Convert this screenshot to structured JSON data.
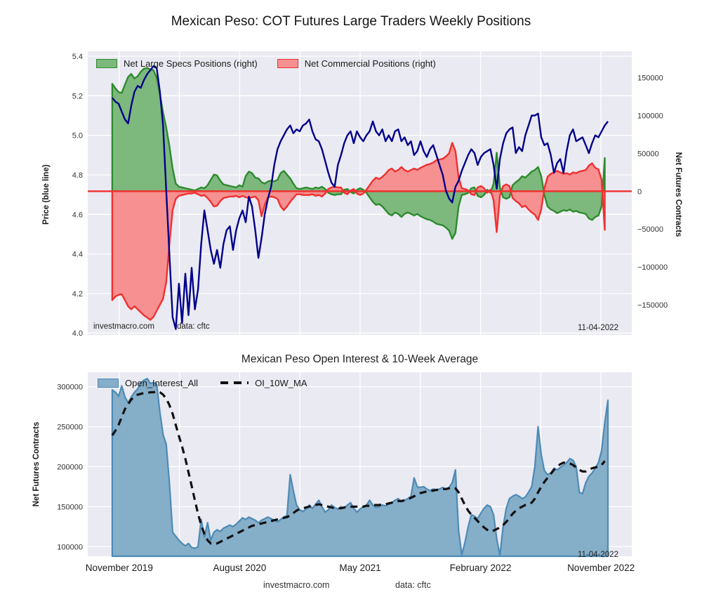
{
  "colors": {
    "figure_bg": "#ffffff",
    "axes_bg": "#eaeaf2",
    "grid": "#ffffff",
    "price_line": "#00008b",
    "specs_fill": "#7db87d",
    "specs_edge": "#2e8b2e",
    "commercial_fill": "#f79090",
    "commercial_edge": "#f03030",
    "zero_line": "#f03030",
    "oi_fill": "#85aec9",
    "oi_edge": "#4d8ab5",
    "ma_line": "#111111"
  },
  "chart_data": [
    {
      "type": "line+area",
      "title": "Mexican Peso: COT Futures Large Traders Weekly Positions",
      "ylabel_left": "Price (blue line)",
      "ylabel_right": "Net Futures Contracts",
      "ylim_left": [
        3.99,
        5.425
      ],
      "ylim_right": [
        -190000,
        185000
      ],
      "xlim": [
        -7.7,
        163.5
      ],
      "xgrid": [
        2.2,
        21.15,
        40.1,
        59.05,
        78.0,
        96.95,
        115.9,
        134.85,
        153.8
      ],
      "yticks_left": {
        "values": [
          5.4,
          5.2,
          5.0,
          4.8,
          4.6,
          4.4,
          4.2,
          4.0
        ],
        "labels": [
          "5.4",
          "5.2",
          "5.0",
          "4.8",
          "4.6",
          "4.4",
          "4.2",
          "4.0"
        ]
      },
      "yticks_right": {
        "values": [
          150000,
          100000,
          50000,
          0,
          -50000,
          -100000,
          -150000
        ],
        "labels": [
          "150000",
          "100000",
          "50000",
          "0",
          "−50000",
          "−100000",
          "−150000"
        ]
      },
      "legend": [
        "Net Large Specs Positions (right)",
        "Net Commercial Positions (right)"
      ],
      "annotations": [
        "investmacro.com",
        "data: cftc",
        "11-04-2022"
      ],
      "zero_line": {
        "axis": "right",
        "value": 0,
        "color": "#f03030"
      },
      "series": [
        {
          "id": "net-large-specs-area",
          "name": "Net Large Specs Positions",
          "axis": "right",
          "style": "area",
          "baseline": 0,
          "fill": "#7db87d",
          "edge": "#2e8b2e",
          "edge_width": 2.4,
          "start_week": 0,
          "step": 1,
          "values": [
            142000,
            136000,
            131000,
            130000,
            141000,
            151000,
            155000,
            149000,
            152000,
            158000,
            162000,
            163000,
            161000,
            160000,
            150000,
            128000,
            104000,
            84000,
            60000,
            30000,
            10000,
            6000,
            5000,
            4000,
            3000,
            2000,
            1000,
            3000,
            5000,
            4000,
            8000,
            15000,
            22000,
            21000,
            14000,
            9000,
            8000,
            7000,
            6000,
            5000,
            8000,
            6000,
            20000,
            26000,
            24000,
            18000,
            17000,
            12000,
            10000,
            13000,
            14000,
            13000,
            15000,
            24000,
            27000,
            22000,
            17000,
            10000,
            4000,
            3000,
            4000,
            5000,
            4000,
            3000,
            5000,
            4000,
            6000,
            3000,
            -2000,
            -4000,
            -5000,
            -4000,
            -4000,
            2000,
            3000,
            -1000,
            -3000,
            2000,
            4000,
            2000,
            -2000,
            -8000,
            -14000,
            -18000,
            -17000,
            -20000,
            -25000,
            -30000,
            -32000,
            -28000,
            -30000,
            -34000,
            -30000,
            -28000,
            -30000,
            -32000,
            -30000,
            -33000,
            -35000,
            -37000,
            -38000,
            -40000,
            -43000,
            -44000,
            -45000,
            -48000,
            -52000,
            -63000,
            -55000,
            -20000,
            -5000,
            -4000,
            -2000,
            4000,
            5000,
            -6000,
            -8000,
            -5000,
            2000,
            -2000,
            10000,
            51000,
            5000,
            -8000,
            -10000,
            -8000,
            8000,
            12000,
            15000,
            20000,
            18000,
            22000,
            26000,
            28000,
            32000,
            20000,
            -5000,
            -20000,
            -24000,
            -26000,
            -29000,
            -27000,
            -25000,
            -26000,
            -24000,
            -27000,
            -26000,
            -28000,
            -29000,
            -30000,
            -36000,
            -38000,
            -34000,
            -32000,
            -20000,
            44000
          ]
        },
        {
          "id": "net-commercial-area",
          "name": "Net Commercial Positions",
          "axis": "right",
          "style": "area",
          "baseline": 0,
          "fill": "#f79090",
          "edge": "#f03030",
          "edge_width": 2.4,
          "start_week": 0,
          "step": 1,
          "values": [
            -144000,
            -139000,
            -137000,
            -136000,
            -144000,
            -152000,
            -156000,
            -152000,
            -156000,
            -160000,
            -164000,
            -167000,
            -170000,
            -166000,
            -158000,
            -150000,
            -142000,
            -120000,
            -70000,
            -25000,
            -10000,
            -6000,
            -5000,
            -4000,
            -3000,
            -3000,
            -2000,
            -4000,
            -6000,
            -5000,
            -9000,
            -14000,
            -20000,
            -19000,
            -13000,
            -9000,
            -8000,
            -7000,
            -7000,
            -6000,
            -8000,
            -6000,
            -8000,
            -9000,
            -8000,
            -7000,
            -12000,
            -33000,
            -18000,
            -8000,
            -7000,
            -8000,
            -10000,
            -20000,
            -25000,
            -20000,
            -14000,
            -9000,
            -4000,
            -4000,
            -5000,
            -5000,
            -5000,
            -4000,
            -6000,
            -5000,
            -7000,
            -3000,
            3000,
            5000,
            6000,
            5000,
            5000,
            -2000,
            -4000,
            1000,
            3000,
            -3000,
            -5000,
            -3000,
            2000,
            8000,
            14000,
            18000,
            16000,
            19000,
            23000,
            28000,
            30000,
            26000,
            28000,
            32000,
            28000,
            26000,
            28000,
            30000,
            28000,
            31000,
            33000,
            35000,
            36000,
            38000,
            41000,
            42000,
            43000,
            46000,
            50000,
            64000,
            53000,
            18000,
            4000,
            3000,
            1000,
            -4000,
            -5000,
            5000,
            7000,
            4000,
            -2000,
            2000,
            -12000,
            -54000,
            -6000,
            7000,
            9000,
            7000,
            -9000,
            -13000,
            -16000,
            -21000,
            -19000,
            -24000,
            -28000,
            -31000,
            -38000,
            -24000,
            4000,
            19000,
            23000,
            25000,
            27000,
            25000,
            23000,
            24000,
            22000,
            25000,
            24000,
            26000,
            27000,
            28000,
            34000,
            37000,
            31000,
            29000,
            15000,
            -51000
          ]
        },
        {
          "id": "price-line",
          "name": "Price",
          "axis": "left",
          "style": "line",
          "color": "#00008b",
          "width": 2.4,
          "start_week": 0,
          "step": 1,
          "values": [
            5.19,
            5.17,
            5.16,
            5.12,
            5.08,
            5.06,
            5.15,
            5.22,
            5.25,
            5.24,
            5.28,
            5.31,
            5.33,
            5.35,
            5.34,
            5.22,
            5.05,
            4.72,
            4.4,
            4.08,
            4.02,
            4.25,
            4.05,
            4.3,
            4.09,
            4.33,
            4.12,
            4.22,
            4.45,
            4.62,
            4.52,
            4.42,
            4.35,
            4.42,
            4.33,
            4.45,
            4.52,
            4.54,
            4.42,
            4.52,
            4.58,
            4.62,
            4.56,
            4.69,
            4.64,
            4.52,
            4.38,
            4.48,
            4.6,
            4.68,
            4.74,
            4.85,
            4.93,
            4.97,
            5.0,
            5.03,
            5.05,
            5.01,
            5.03,
            5.02,
            5.05,
            5.06,
            5.08,
            5.02,
            4.98,
            4.97,
            4.93,
            4.87,
            4.81,
            4.76,
            4.74,
            4.85,
            4.9,
            4.96,
            5.0,
            5.02,
            4.96,
            5.02,
            4.99,
            4.97,
            5.0,
            5.02,
            5.07,
            5.02,
            5.0,
            5.03,
            4.97,
            5.0,
            4.97,
            5.02,
            5.03,
            4.97,
            4.99,
            4.95,
            4.97,
            4.9,
            4.92,
            4.97,
            4.92,
            4.89,
            4.93,
            4.95,
            4.9,
            4.85,
            4.8,
            4.72,
            4.68,
            4.66,
            4.74,
            4.77,
            4.82,
            4.86,
            4.9,
            4.93,
            4.91,
            4.85,
            4.89,
            4.91,
            4.92,
            4.93,
            4.85,
            4.73,
            4.88,
            4.96,
            5.01,
            5.03,
            5.04,
            4.91,
            4.94,
            4.92,
            5.0,
            5.05,
            5.1,
            5.1,
            5.11,
            4.99,
            4.95,
            4.96,
            4.9,
            4.81,
            4.86,
            4.88,
            4.81,
            4.92,
            5.0,
            5.03,
            4.97,
            4.98,
            4.99,
            4.95,
            4.91,
            4.96,
            5.0,
            4.99,
            5.02,
            5.05,
            5.07
          ]
        }
      ]
    },
    {
      "type": "area+line",
      "title": "Mexican Peso Open Interest & 10-Week Average",
      "ylabel_left": "Net Futures Contracts",
      "ylim_left": [
        88000,
        318000
      ],
      "xlim": [
        -7.7,
        163.5
      ],
      "xgrid": [
        2.2,
        21.15,
        40.1,
        59.05,
        78.0,
        96.95,
        115.9,
        134.85,
        153.8
      ],
      "yticks_left": {
        "values": [
          300000,
          250000,
          200000,
          150000,
          100000
        ],
        "labels": [
          "300000",
          "250000",
          "200000",
          "150000",
          "100000"
        ]
      },
      "xticks": {
        "values": [
          2.2,
          40.1,
          78.0,
          115.9,
          153.8
        ],
        "labels": [
          "November 2019",
          "August 2020",
          "May 2021",
          "February 2022",
          "November 2022"
        ]
      },
      "legend": [
        "Open_Interest_All",
        "OI_10W_MA"
      ],
      "annotations": [
        "11-04-2022",
        "investmacro.com",
        "data: cftc"
      ],
      "series": [
        {
          "id": "open-interest-area",
          "name": "Open_Interest_All",
          "axis": "left",
          "style": "area",
          "baseline": 88000,
          "fill": "#85aec9",
          "edge": "#4d8ab5",
          "edge_width": 2.2,
          "start_week": 0,
          "step": 1,
          "values": [
            296000,
            293000,
            288000,
            301000,
            287000,
            280000,
            287000,
            293000,
            297000,
            305000,
            308000,
            310000,
            304000,
            305000,
            303000,
            268000,
            240000,
            228000,
            180000,
            118000,
            113000,
            108000,
            104000,
            101000,
            104000,
            99000,
            98000,
            100000,
            134000,
            112000,
            130000,
            108000,
            118000,
            121000,
            119000,
            123000,
            125000,
            127000,
            125000,
            128000,
            132000,
            136000,
            134000,
            137000,
            135000,
            133000,
            130000,
            133000,
            135000,
            137000,
            135000,
            133000,
            131000,
            134000,
            137000,
            139000,
            190000,
            170000,
            152000,
            146000,
            144000,
            147000,
            152000,
            148000,
            153000,
            158000,
            150000,
            143000,
            146000,
            152000,
            149000,
            147000,
            150000,
            148000,
            152000,
            155000,
            148000,
            143000,
            147000,
            150000,
            152000,
            158000,
            152000,
            149000,
            150000,
            152000,
            151000,
            153000,
            155000,
            158000,
            160000,
            156000,
            158000,
            160000,
            163000,
            186000,
            175000,
            174000,
            175000,
            172000,
            170000,
            172000,
            171000,
            172000,
            174000,
            172000,
            174000,
            180000,
            196000,
            120000,
            90000,
            105000,
            125000,
            140000,
            138000,
            135000,
            142000,
            148000,
            152000,
            150000,
            140000,
            110000,
            89000,
            125000,
            148000,
            160000,
            163000,
            165000,
            163000,
            160000,
            162000,
            168000,
            175000,
            200000,
            250000,
            215000,
            195000,
            190000,
            192000,
            198000,
            196000,
            199000,
            202000,
            205000,
            210000,
            208000,
            200000,
            168000,
            166000,
            180000,
            188000,
            192000,
            198000,
            205000,
            220000,
            255000,
            283000
          ]
        },
        {
          "id": "oi-10w-ma-line",
          "name": "OI_10W_MA",
          "axis": "left",
          "style": "line",
          "color": "#111111",
          "width": 3.2,
          "dash": "10 7",
          "start_week": 0,
          "step": 1,
          "values": [
            239000,
            245000,
            252000,
            262000,
            272000,
            278000,
            284000,
            287000,
            290000,
            291000,
            292000,
            292000,
            293000,
            293000,
            294000,
            293000,
            290000,
            285000,
            277000,
            266000,
            252000,
            238000,
            225000,
            210000,
            193000,
            176000,
            158000,
            141000,
            127000,
            116000,
            108000,
            104000,
            103000,
            104000,
            106000,
            108000,
            110000,
            112000,
            114000,
            116000,
            118000,
            120000,
            122000,
            124000,
            126000,
            127000,
            128000,
            129000,
            130000,
            131000,
            132000,
            133000,
            134000,
            135000,
            136000,
            137000,
            139000,
            142000,
            145000,
            147000,
            148000,
            149000,
            150000,
            151000,
            152000,
            153000,
            152000,
            151000,
            150000,
            149000,
            148000,
            148000,
            148000,
            149000,
            150000,
            150000,
            150000,
            150000,
            150000,
            150000,
            151000,
            151000,
            152000,
            152000,
            152000,
            153000,
            153000,
            154000,
            155000,
            156000,
            157000,
            157000,
            158000,
            159000,
            161000,
            163000,
            165000,
            167000,
            168000,
            169000,
            170000,
            170000,
            171000,
            171000,
            172000,
            172000,
            173000,
            174000,
            173000,
            168000,
            160000,
            152000,
            145000,
            140000,
            136000,
            132000,
            128000,
            124000,
            121000,
            119000,
            120000,
            122000,
            124000,
            127000,
            131000,
            136000,
            141000,
            145000,
            148000,
            150000,
            152000,
            153000,
            155000,
            160000,
            168000,
            175000,
            181000,
            186000,
            191000,
            196000,
            200000,
            203000,
            205000,
            205000,
            204000,
            202000,
            199000,
            196000,
            194000,
            194000,
            196000,
            198000,
            199000,
            200000,
            202000,
            207000
          ]
        }
      ]
    }
  ]
}
